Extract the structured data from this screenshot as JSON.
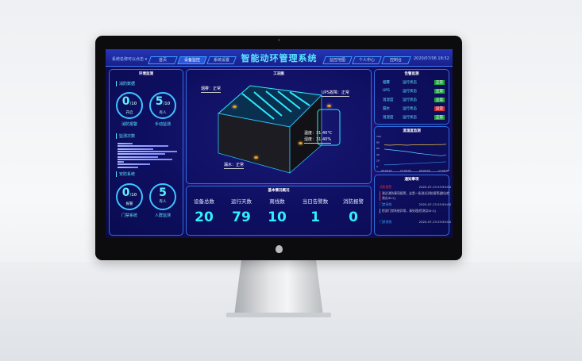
{
  "header": {
    "system_name": "系统名称可以点击 ▾",
    "title": "智能动环管理系统",
    "tabs": [
      "首页",
      "设备监控",
      "系统设置",
      "监控地图",
      "个人中心",
      "控制台"
    ],
    "active_tab": 1,
    "datetime": "2020/07/06 18:52"
  },
  "left": {
    "title": "环境监测",
    "fire": {
      "label": "消防数据",
      "items": [
        {
          "value": "0",
          "total": "/10",
          "status": "开启",
          "caption": "消防报警"
        },
        {
          "value": "5",
          "total": "/10",
          "status": "有人",
          "caption": "手动监测"
        }
      ]
    },
    "monitor": {
      "label": "监测次数",
      "bars": [
        0.25,
        0.85,
        0.6,
        1.0,
        0.8,
        0.68,
        0.92,
        0.1,
        0.55,
        0.35
      ]
    },
    "security": {
      "label": "安防系统",
      "items": [
        {
          "value": "0",
          "total": "/10",
          "status": "报警",
          "caption": "门禁系统"
        },
        {
          "value": "5",
          "total": "",
          "status": "有人",
          "caption": "人群监测"
        }
      ]
    }
  },
  "center": {
    "title": "工况图",
    "tags": {
      "smoke": "烟雾：正常",
      "ups": "UPS故障：正常",
      "temp": "温度：31.40°C",
      "humidity": "湿度：31.40%",
      "leak": "漏水：正常"
    },
    "overview_title": "基本情况概况",
    "stats": [
      {
        "label": "设备总数",
        "value": "20"
      },
      {
        "label": "运行天数",
        "value": "79"
      },
      {
        "label": "离线数",
        "value": "10"
      },
      {
        "label": "当日告警数",
        "value": "1"
      },
      {
        "label": "消防报警",
        "value": "0"
      }
    ]
  },
  "right": {
    "alarm": {
      "title": "告警监测",
      "rows": [
        {
          "name": "烟雾",
          "state": "运行状态",
          "status": "正常",
          "color": "#1fa83a"
        },
        {
          "name": "UPS",
          "state": "运行状态",
          "status": "正常",
          "color": "#1fa83a"
        },
        {
          "name": "温湿度",
          "state": "运行状态",
          "status": "正常",
          "color": "#1fa83a"
        },
        {
          "name": "漏水",
          "state": "运行状态",
          "status": "异常",
          "color": "#d8323a"
        },
        {
          "name": "温湿度",
          "state": "运行状态",
          "status": "正常",
          "color": "#1fa83a"
        }
      ]
    },
    "chart": {
      "title": "温湿度监测",
      "y_ticks": [
        "100",
        "80",
        "60",
        "40",
        "20",
        "0"
      ],
      "x_ticks": [
        "00:00:10",
        "17:00:00",
        "00:00:00",
        "17:00:00"
      ],
      "series": [
        {
          "color": "#e8c23a",
          "values": [
            72,
            71,
            72,
            72,
            71,
            72,
            72,
            73,
            72,
            73,
            73,
            74
          ]
        },
        {
          "color": "#5fd8ff",
          "values": [
            58,
            56,
            54,
            52,
            50,
            47,
            44,
            42,
            40,
            38,
            36,
            38
          ]
        },
        {
          "color": "#3a8bd8",
          "values": [
            6,
            6,
            7,
            8,
            9,
            10,
            11,
            12,
            13,
            14,
            15,
            16
          ]
        }
      ]
    },
    "notice": {
      "title": "通知事项",
      "items": [
        {
          "type": "消防报警",
          "color": "#e0303a",
          "time": "2020-07-13 03:55:00",
          "text": "测试消防事项报警，这是一条测试消防报警通知[检测点ID:1]"
        },
        {
          "type": "门禁系统",
          "color": "#3aa8ff",
          "time": "2020-07-13 03:55:00",
          "text": "检测门禁系统异常，请处理[检测点ID:1]"
        },
        {
          "type": "门禁系统",
          "color": "#3aa8ff",
          "time": "2020-07-13 03:55:00"
        }
      ]
    }
  }
}
